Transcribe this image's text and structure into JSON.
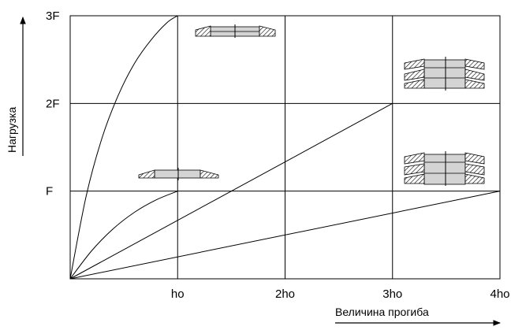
{
  "chart_data": {
    "type": "line",
    "title": "",
    "xlabel": "Величина прогиба",
    "ylabel": "Нагрузка",
    "x_unit": "ho",
    "y_unit": "F",
    "xlim": [
      0,
      4
    ],
    "ylim": [
      0,
      3
    ],
    "grid": true,
    "x_ticks": [
      {
        "value": 1,
        "label": "ho"
      },
      {
        "value": 2,
        "label": "2ho"
      },
      {
        "value": 3,
        "label": "3ho"
      },
      {
        "value": 4,
        "label": "4ho"
      }
    ],
    "y_ticks": [
      {
        "value": 1,
        "label": "F"
      },
      {
        "value": 2,
        "label": "2F"
      },
      {
        "value": 3,
        "label": "3F"
      }
    ],
    "series": [
      {
        "id": "single",
        "shape": "curve",
        "x": [
          0,
          0.15,
          0.3,
          0.45,
          0.6,
          0.75,
          0.9,
          1.0
        ],
        "y": [
          0,
          0.95,
          1.62,
          2.1,
          2.46,
          2.72,
          2.92,
          3.0
        ]
      },
      {
        "id": "single-stroke",
        "shape": "curve",
        "x": [
          0,
          0.2,
          0.4,
          0.6,
          0.8,
          1.0
        ],
        "y": [
          0,
          0.32,
          0.57,
          0.76,
          0.9,
          1.0
        ]
      },
      {
        "id": "double-stack",
        "shape": "line",
        "x": [
          0,
          3
        ],
        "y": [
          0,
          2
        ]
      },
      {
        "id": "quadruple-stack",
        "shape": "line",
        "x": [
          0,
          4
        ],
        "y": [
          0,
          1
        ]
      }
    ]
  }
}
